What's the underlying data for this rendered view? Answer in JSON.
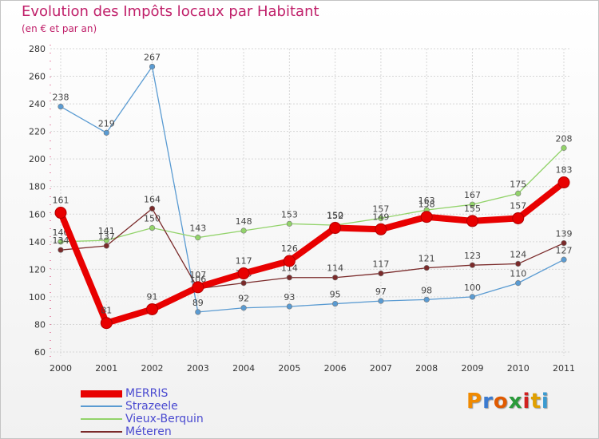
{
  "chart_data": {
    "type": "line",
    "title": "Evolution des Impôts locaux par Habitant",
    "subtitle": "(en € et par an)",
    "categories": [
      "2000",
      "2001",
      "2002",
      "2003",
      "2004",
      "2005",
      "2006",
      "2007",
      "2008",
      "2009",
      "2010",
      "2011"
    ],
    "ylim": [
      60,
      280
    ],
    "yticks": [
      60,
      80,
      100,
      120,
      140,
      160,
      180,
      200,
      220,
      240,
      260,
      280
    ],
    "series": [
      {
        "name": "Strazeele",
        "color": "#5a9bd2",
        "values": [
          238,
          219,
          267,
          89,
          92,
          93,
          95,
          97,
          98,
          100,
          110,
          127
        ]
      },
      {
        "name": "Vieux-Berquin",
        "color": "#92d36a",
        "values": [
          140,
          141,
          150,
          143,
          148,
          153,
          152,
          157,
          163,
          167,
          175,
          208
        ]
      },
      {
        "name": "Méteren",
        "color": "#7a2a2a",
        "values": [
          134,
          137,
          164,
          106,
          110,
          114,
          114,
          117,
          121,
          123,
          124,
          139
        ]
      },
      {
        "name": "MERRIS",
        "color": "#e80000",
        "values": [
          161,
          81,
          91,
          107,
          117,
          126,
          150,
          149,
          158,
          155,
          157,
          183
        ]
      }
    ],
    "legend": [
      "MERRIS",
      "Strazeele",
      "Vieux-Berquin",
      "Méteren"
    ]
  },
  "logo": {
    "letters": [
      "P",
      "r",
      "o",
      "x",
      "i",
      "t",
      "i"
    ],
    "colors": [
      "#f08a00",
      "#3a7ad0",
      "#e05a00",
      "#2a9a3a",
      "#d02020",
      "#e0a000",
      "#3a9ad0"
    ]
  }
}
